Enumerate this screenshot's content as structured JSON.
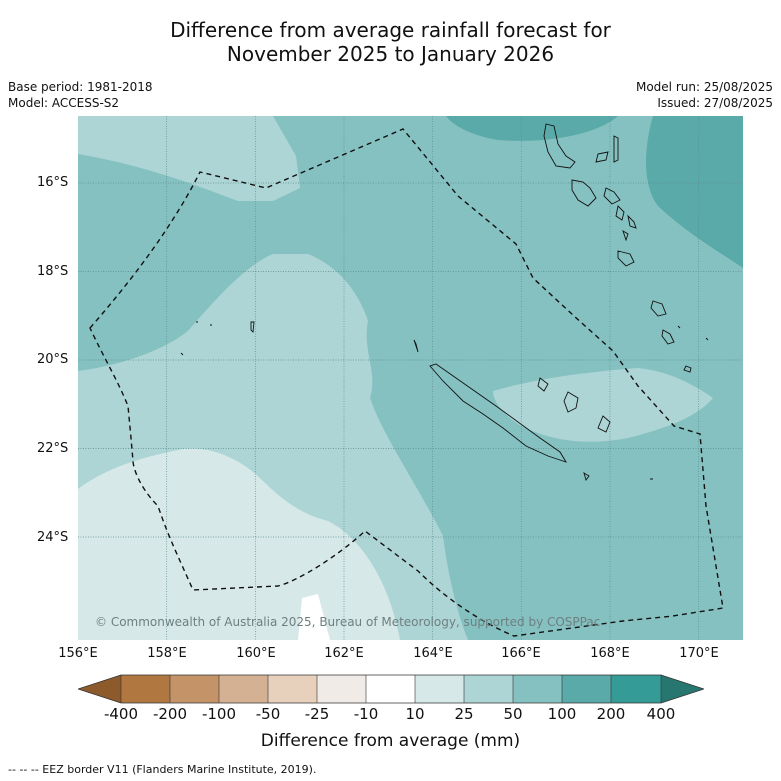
{
  "title_line1": "Difference from average rainfall forecast for",
  "title_line2": "November 2025 to January 2026",
  "base_period": "Base period: 1981-2018",
  "model": "Model: ACCESS-S2",
  "model_run": "Model run: 25/08/2025",
  "issued": "Issued: 27/08/2025",
  "lat_labels": [
    "16°S",
    "18°S",
    "20°S",
    "22°S",
    "24°S"
  ],
  "lon_labels": [
    "156°E",
    "158°E",
    "160°E",
    "162°E",
    "164°E",
    "166°E",
    "168°E",
    "170°E"
  ],
  "copyright": "© Commonwealth of Australia 2025, Bureau of Meteorology, supported by COSPPac",
  "legend": {
    "title": "Difference from average (mm)",
    "ticks": [
      "-400",
      "-200",
      "-100",
      "-50",
      "-25",
      "-10",
      "10",
      "25",
      "50",
      "100",
      "200",
      "400"
    ],
    "colors": [
      "#8c5a2b",
      "#b07840",
      "#c49468",
      "#d4b192",
      "#e7d0bc",
      "#f0ebe6",
      "#ffffff",
      "#d6e9e8",
      "#aed5d5",
      "#86c1c1",
      "#5aaaaa",
      "#359b96",
      "#27766f"
    ]
  },
  "eez_note": "--  --  -- EEZ border V11 (Flanders Marine Institute, 2019)."
}
